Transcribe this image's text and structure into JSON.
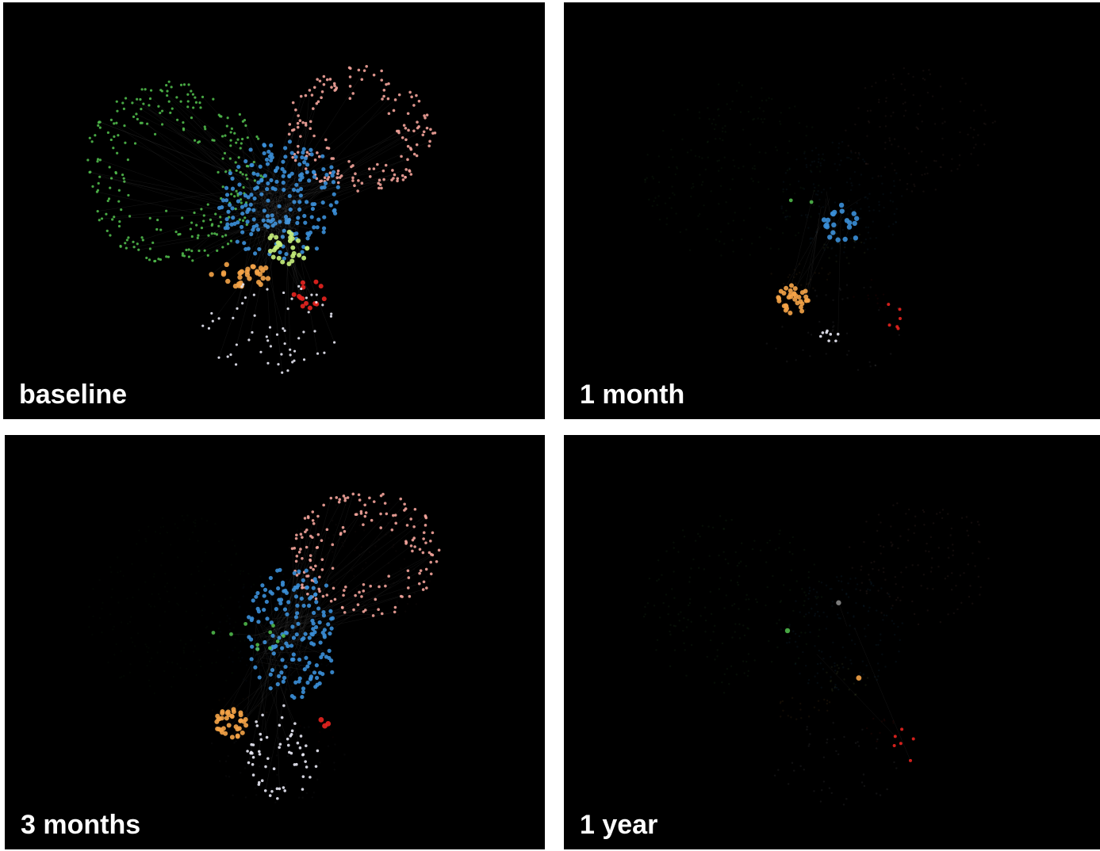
{
  "panels": [
    {
      "label": "baseline",
      "activity": 1.0,
      "clusters": [
        "green",
        "pink",
        "blue",
        "orange",
        "lightgreen",
        "red",
        "white"
      ]
    },
    {
      "label": "1 month",
      "activity": 0.15,
      "clusters": [
        "blue",
        "orange",
        "white",
        "green",
        "red"
      ]
    },
    {
      "label": "3 months",
      "activity": 0.6,
      "clusters": [
        "pink",
        "blue",
        "orange",
        "white",
        "green",
        "red"
      ]
    },
    {
      "label": "1 year",
      "activity": 0.05,
      "clusters": [
        "green",
        "orange",
        "red",
        "gray"
      ]
    }
  ],
  "colors": {
    "background": "#000000",
    "green": "#4fb84a",
    "pink": "#f3a39a",
    "blue": "#3b8fd8",
    "orange": "#f4a347",
    "lightgreen": "#c6f07a",
    "red": "#e8231f",
    "white": "#e8e8f4",
    "gray": "#888888",
    "label": "#ffffff"
  }
}
